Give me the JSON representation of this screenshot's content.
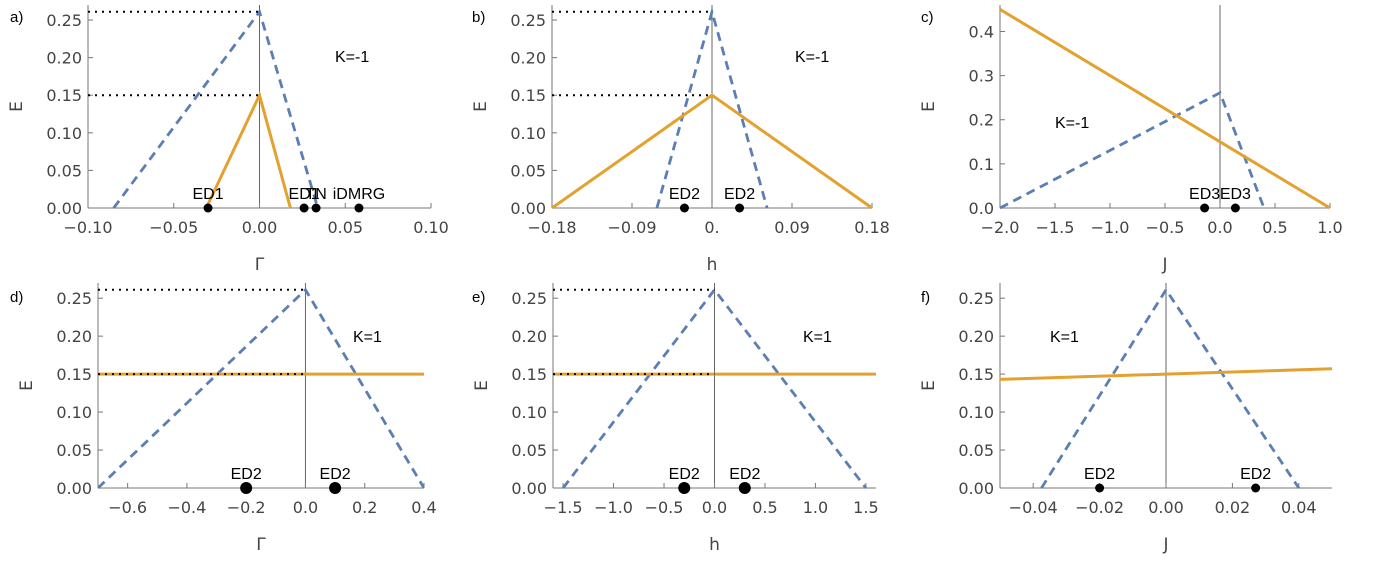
{
  "chart_data": [
    {
      "type": "line",
      "panel_label": "a)",
      "xlabel": "Γ",
      "ylabel": "E",
      "annotation": "K=-1",
      "xlim": [
        -0.1,
        0.1
      ],
      "ylim": [
        0,
        0.27
      ],
      "xticks": [
        -0.1,
        -0.05,
        0.0,
        0.05,
        0.1
      ],
      "xtick_labels": [
        "−0.10",
        "−0.05",
        "0.00",
        "0.05",
        "0.10"
      ],
      "yticks": [
        0,
        0.05,
        0.1,
        0.15,
        0.2,
        0.25
      ],
      "ytick_labels": [
        "0.00",
        "0.05",
        "0.10",
        "0.15",
        "0.20",
        "0.25"
      ],
      "series": [
        {
          "style": "dashed-blue",
          "x": [
            -0.085,
            0.0,
            0.034
          ],
          "y": [
            0,
            0.261,
            0
          ]
        },
        {
          "style": "solid-orange",
          "x": [
            -0.031,
            0.0,
            0.018
          ],
          "y": [
            0,
            0.15,
            0
          ]
        },
        {
          "style": "dotted-black",
          "x": [
            -0.1,
            0.0
          ],
          "y": [
            0.261,
            0.261
          ]
        },
        {
          "style": "dotted-black",
          "x": [
            -0.1,
            0.0
          ],
          "y": [
            0.15,
            0.15
          ]
        }
      ],
      "points": [
        {
          "x": -0.03,
          "y": 0,
          "label": "ED1",
          "size": "small"
        },
        {
          "x": 0.026,
          "y": 0,
          "label": "ED1",
          "size": "small"
        },
        {
          "x": 0.033,
          "y": 0,
          "label": "TN",
          "size": "small"
        },
        {
          "x": 0.058,
          "y": 0,
          "label": "iDMRG",
          "size": "small"
        }
      ]
    },
    {
      "type": "line",
      "panel_label": "b)",
      "xlabel": "h",
      "ylabel": "E",
      "annotation": "K=-1",
      "xlim": [
        -0.18,
        0.18
      ],
      "ylim": [
        0,
        0.27
      ],
      "xticks": [
        -0.18,
        -0.09,
        0.0,
        0.09,
        0.18
      ],
      "xtick_labels": [
        "−0.18",
        "−0.09",
        "0.",
        "0.09",
        "0.18"
      ],
      "yticks": [
        0,
        0.05,
        0.1,
        0.15,
        0.2,
        0.25
      ],
      "ytick_labels": [
        "0.00",
        "0.05",
        "0.10",
        "0.15",
        "0.20",
        "0.25"
      ],
      "series": [
        {
          "style": "dashed-blue",
          "x": [
            -0.062,
            0.0,
            0.062
          ],
          "y": [
            0,
            0.261,
            0
          ]
        },
        {
          "style": "solid-orange",
          "x": [
            -0.18,
            0.0,
            0.18
          ],
          "y": [
            0,
            0.15,
            0
          ]
        },
        {
          "style": "dotted-black",
          "x": [
            -0.18,
            0.0
          ],
          "y": [
            0.261,
            0.261
          ]
        },
        {
          "style": "dotted-black",
          "x": [
            -0.18,
            0.0
          ],
          "y": [
            0.15,
            0.15
          ]
        }
      ],
      "points": [
        {
          "x": -0.031,
          "y": 0,
          "label": "ED2",
          "size": "small"
        },
        {
          "x": 0.031,
          "y": 0,
          "label": "ED2",
          "size": "small"
        }
      ]
    },
    {
      "type": "line",
      "panel_label": "c)",
      "xlabel": "J",
      "ylabel": "E",
      "annotation": "K=-1",
      "xlim": [
        -2.0,
        1.0
      ],
      "ylim": [
        0,
        0.46
      ],
      "xticks": [
        -2.0,
        -1.5,
        -1.0,
        -0.5,
        0.0,
        0.5,
        1.0
      ],
      "xtick_labels": [
        "−2.0",
        "−1.5",
        "−1.0",
        "−0.5",
        "0.0",
        "0.5",
        "1.0"
      ],
      "yticks": [
        0,
        0.1,
        0.2,
        0.3,
        0.4
      ],
      "ytick_labels": [
        "0.0",
        "0.1",
        "0.2",
        "0.3",
        "0.4"
      ],
      "series": [
        {
          "style": "dashed-blue",
          "x": [
            -2.0,
            0.0,
            0.4
          ],
          "y": [
            0,
            0.261,
            0
          ]
        },
        {
          "style": "solid-orange",
          "x": [
            -2.0,
            1.0
          ],
          "y": [
            0.45,
            0
          ]
        }
      ],
      "points": [
        {
          "x": -0.14,
          "y": 0,
          "label": "ED3",
          "size": "small"
        },
        {
          "x": 0.14,
          "y": 0,
          "label": "ED3",
          "size": "small"
        }
      ]
    },
    {
      "type": "line",
      "panel_label": "d)",
      "xlabel": "Γ",
      "ylabel": "E",
      "annotation": "K=1",
      "xlim": [
        -0.7,
        0.4
      ],
      "ylim": [
        0,
        0.27
      ],
      "xticks": [
        -0.6,
        -0.4,
        -0.2,
        0.0,
        0.2,
        0.4
      ],
      "xtick_labels": [
        "−0.6",
        "−0.4",
        "−0.2",
        "0.0",
        "0.2",
        "0.4"
      ],
      "yticks": [
        0,
        0.05,
        0.1,
        0.15,
        0.2,
        0.25
      ],
      "ytick_labels": [
        "0.00",
        "0.05",
        "0.10",
        "0.15",
        "0.20",
        "0.25"
      ],
      "series": [
        {
          "style": "dashed-blue",
          "x": [
            -0.7,
            0.0,
            0.4
          ],
          "y": [
            0,
            0.261,
            0
          ]
        },
        {
          "style": "solid-orange",
          "x": [
            -0.7,
            0.4
          ],
          "y": [
            0.15,
            0.15
          ]
        },
        {
          "style": "dotted-black",
          "x": [
            -0.7,
            0.0
          ],
          "y": [
            0.261,
            0.261
          ]
        },
        {
          "style": "dotted-black",
          "x": [
            -0.7,
            0.0
          ],
          "y": [
            0.15,
            0.15
          ]
        }
      ],
      "points": [
        {
          "x": -0.2,
          "y": 0,
          "label": "ED2",
          "size": "large"
        },
        {
          "x": 0.1,
          "y": 0,
          "label": "ED2",
          "size": "large"
        }
      ]
    },
    {
      "type": "line",
      "panel_label": "e)",
      "xlabel": "h",
      "ylabel": "E",
      "annotation": "K=1",
      "xlim": [
        -1.6,
        1.6
      ],
      "ylim": [
        0,
        0.27
      ],
      "xticks": [
        -1.5,
        -1.0,
        -0.5,
        0.0,
        0.5,
        1.0,
        1.5
      ],
      "xtick_labels": [
        "−1.5",
        "−1.0",
        "−0.5",
        "0.0",
        "0.5",
        "1.0",
        "1.5"
      ],
      "yticks": [
        0,
        0.05,
        0.1,
        0.15,
        0.2,
        0.25
      ],
      "ytick_labels": [
        "0.00",
        "0.05",
        "0.10",
        "0.15",
        "0.20",
        "0.25"
      ],
      "series": [
        {
          "style": "dashed-blue",
          "x": [
            -1.5,
            0.0,
            1.5
          ],
          "y": [
            0,
            0.261,
            0
          ]
        },
        {
          "style": "solid-orange",
          "x": [
            -1.6,
            1.6
          ],
          "y": [
            0.15,
            0.15
          ]
        },
        {
          "style": "dotted-black",
          "x": [
            -1.6,
            0.0
          ],
          "y": [
            0.261,
            0.261
          ]
        },
        {
          "style": "dotted-black",
          "x": [
            -1.6,
            0.0
          ],
          "y": [
            0.15,
            0.15
          ]
        }
      ],
      "points": [
        {
          "x": -0.3,
          "y": 0,
          "label": "ED2",
          "size": "large"
        },
        {
          "x": 0.3,
          "y": 0,
          "label": "ED2",
          "size": "large"
        }
      ]
    },
    {
      "type": "line",
      "panel_label": "f)",
      "xlabel": "J",
      "ylabel": "E",
      "annotation": "K=1",
      "xlim": [
        -0.05,
        0.05
      ],
      "ylim": [
        0,
        0.27
      ],
      "xticks": [
        -0.04,
        -0.02,
        0.0,
        0.02,
        0.04
      ],
      "xtick_labels": [
        "−0.04",
        "−0.02",
        "0.00",
        "0.02",
        "0.04"
      ],
      "yticks": [
        0,
        0.05,
        0.1,
        0.15,
        0.2,
        0.25
      ],
      "ytick_labels": [
        "0.00",
        "0.05",
        "0.10",
        "0.15",
        "0.20",
        "0.25"
      ],
      "series": [
        {
          "style": "dashed-blue",
          "x": [
            -0.0375,
            0.0,
            0.04
          ],
          "y": [
            0,
            0.261,
            0
          ]
        },
        {
          "style": "solid-orange",
          "x": [
            -0.05,
            0.05
          ],
          "y": [
            0.143,
            0.157
          ]
        }
      ],
      "points": [
        {
          "x": -0.02,
          "y": 0,
          "label": "ED2",
          "size": "small"
        },
        {
          "x": 0.027,
          "y": 0,
          "label": "ED2",
          "size": "small"
        }
      ]
    }
  ],
  "colors": {
    "dashed-blue": "#5b7fb4",
    "solid-orange": "#e3a12f",
    "dotted-black": "#000000",
    "axis": "#777777",
    "point": "#000000"
  }
}
